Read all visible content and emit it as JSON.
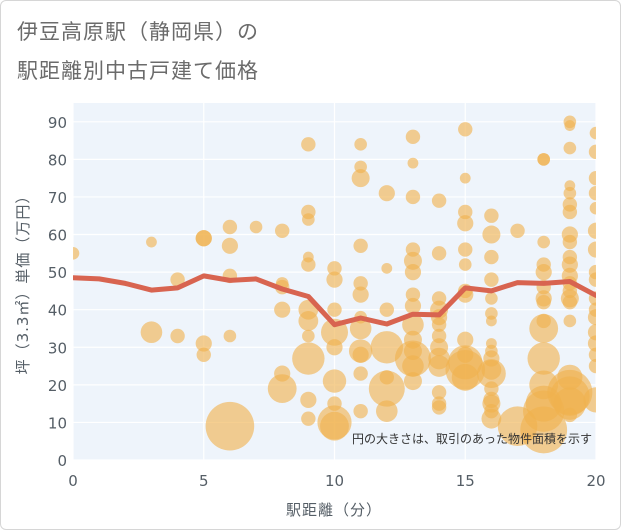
{
  "title": {
    "line1": "伊豆高原駅（静岡県）の",
    "line2": "駅距離別中古戸建て価格"
  },
  "chart_data": {
    "type": "scatter",
    "title": "伊豆高原駅（静岡県）の駅距離別中古戸建て価格",
    "xlabel": "駅距離（分）",
    "ylabel": "坪（3.3㎡）単価（万円）",
    "xlim": [
      0,
      20
    ],
    "ylim": [
      0,
      95
    ],
    "xticks": [
      0,
      5,
      10,
      15,
      20
    ],
    "yticks": [
      0,
      10,
      20,
      30,
      40,
      50,
      60,
      70,
      80,
      90
    ],
    "grid": true,
    "colors": {
      "bubble": "#f0b24e",
      "line": "#d86450",
      "plot_bg": "#eef4fb",
      "grid": "#ffffff"
    },
    "annotation": "円の大きさは、取引のあった物件面積を示す",
    "average_line": {
      "x": [
        0,
        1,
        2,
        3,
        4,
        5,
        6,
        7,
        8,
        9,
        10,
        11,
        12,
        13,
        14,
        15,
        16,
        17,
        18,
        19,
        20
      ],
      "y": [
        48.5,
        48.2,
        47.0,
        45.2,
        45.8,
        49.0,
        47.8,
        48.2,
        45.5,
        43.5,
        36.0,
        37.8,
        36.2,
        38.8,
        38.6,
        45.8,
        45.0,
        47.2,
        47.0,
        47.5,
        43.8
      ]
    },
    "points": [
      {
        "x": 0,
        "y": 55,
        "s": 0.7
      },
      {
        "x": 3,
        "y": 58,
        "s": 0.6
      },
      {
        "x": 3,
        "y": 34,
        "s": 1.2
      },
      {
        "x": 4,
        "y": 48,
        "s": 0.8
      },
      {
        "x": 4,
        "y": 33,
        "s": 0.8
      },
      {
        "x": 5,
        "y": 59,
        "s": 0.9
      },
      {
        "x": 5,
        "y": 59,
        "s": 0.9
      },
      {
        "x": 5,
        "y": 31,
        "s": 0.9
      },
      {
        "x": 5,
        "y": 28,
        "s": 0.8
      },
      {
        "x": 6,
        "y": 62,
        "s": 0.8
      },
      {
        "x": 6,
        "y": 57,
        "s": 0.9
      },
      {
        "x": 6,
        "y": 49,
        "s": 0.8
      },
      {
        "x": 6,
        "y": 33,
        "s": 0.7
      },
      {
        "x": 6,
        "y": 9,
        "s": 2.7
      },
      {
        "x": 7,
        "y": 62,
        "s": 0.7
      },
      {
        "x": 8,
        "y": 61,
        "s": 0.8
      },
      {
        "x": 8,
        "y": 47,
        "s": 0.7
      },
      {
        "x": 8,
        "y": 46,
        "s": 0.8
      },
      {
        "x": 8,
        "y": 40,
        "s": 0.9
      },
      {
        "x": 8,
        "y": 23,
        "s": 0.9
      },
      {
        "x": 8,
        "y": 19,
        "s": 1.6
      },
      {
        "x": 9,
        "y": 84,
        "s": 0.8
      },
      {
        "x": 9,
        "y": 66,
        "s": 0.8
      },
      {
        "x": 9,
        "y": 64,
        "s": 0.7
      },
      {
        "x": 9,
        "y": 54,
        "s": 0.6
      },
      {
        "x": 9,
        "y": 52,
        "s": 0.8
      },
      {
        "x": 9,
        "y": 40,
        "s": 1.1
      },
      {
        "x": 9,
        "y": 37,
        "s": 1.1
      },
      {
        "x": 9,
        "y": 33,
        "s": 0.7
      },
      {
        "x": 9,
        "y": 27,
        "s": 1.8
      },
      {
        "x": 9,
        "y": 16,
        "s": 0.9
      },
      {
        "x": 9,
        "y": 11,
        "s": 0.8
      },
      {
        "x": 10,
        "y": 51,
        "s": 0.8
      },
      {
        "x": 10,
        "y": 48,
        "s": 0.9
      },
      {
        "x": 10,
        "y": 40,
        "s": 0.8
      },
      {
        "x": 10,
        "y": 34,
        "s": 1.5
      },
      {
        "x": 10,
        "y": 30,
        "s": 0.9
      },
      {
        "x": 10,
        "y": 21,
        "s": 1.3
      },
      {
        "x": 10,
        "y": 15,
        "s": 0.8
      },
      {
        "x": 10,
        "y": 10,
        "s": 1.9
      },
      {
        "x": 10,
        "y": 9,
        "s": 1.6
      },
      {
        "x": 11,
        "y": 84,
        "s": 0.7
      },
      {
        "x": 11,
        "y": 78,
        "s": 0.7
      },
      {
        "x": 11,
        "y": 75,
        "s": 1.0
      },
      {
        "x": 11,
        "y": 57,
        "s": 0.8
      },
      {
        "x": 11,
        "y": 47,
        "s": 0.8
      },
      {
        "x": 11,
        "y": 44,
        "s": 0.9
      },
      {
        "x": 11,
        "y": 38,
        "s": 0.7
      },
      {
        "x": 11,
        "y": 35,
        "s": 1.2
      },
      {
        "x": 11,
        "y": 29,
        "s": 1.3
      },
      {
        "x": 11,
        "y": 28,
        "s": 0.9
      },
      {
        "x": 11,
        "y": 23,
        "s": 0.8
      },
      {
        "x": 11,
        "y": 13,
        "s": 0.8
      },
      {
        "x": 12,
        "y": 71,
        "s": 0.9
      },
      {
        "x": 12,
        "y": 51,
        "s": 0.6
      },
      {
        "x": 12,
        "y": 40,
        "s": 0.8
      },
      {
        "x": 12,
        "y": 30,
        "s": 1.8
      },
      {
        "x": 12,
        "y": 22,
        "s": 0.8
      },
      {
        "x": 12,
        "y": 19,
        "s": 2.0
      },
      {
        "x": 12,
        "y": 13,
        "s": 1.2
      },
      {
        "x": 13,
        "y": 86,
        "s": 0.8
      },
      {
        "x": 13,
        "y": 79,
        "s": 0.6
      },
      {
        "x": 13,
        "y": 70,
        "s": 0.8
      },
      {
        "x": 13,
        "y": 56,
        "s": 0.8
      },
      {
        "x": 13,
        "y": 53,
        "s": 1.0
      },
      {
        "x": 13,
        "y": 50,
        "s": 0.9
      },
      {
        "x": 13,
        "y": 44,
        "s": 0.8
      },
      {
        "x": 13,
        "y": 41,
        "s": 0.9
      },
      {
        "x": 13,
        "y": 36,
        "s": 1.2
      },
      {
        "x": 13,
        "y": 32,
        "s": 1.0
      },
      {
        "x": 13,
        "y": 29,
        "s": 1.0
      },
      {
        "x": 13,
        "y": 27,
        "s": 2.0
      },
      {
        "x": 13,
        "y": 25,
        "s": 1.2
      },
      {
        "x": 13,
        "y": 21,
        "s": 1.0
      },
      {
        "x": 14,
        "y": 69,
        "s": 0.8
      },
      {
        "x": 14,
        "y": 55,
        "s": 0.8
      },
      {
        "x": 14,
        "y": 43,
        "s": 0.8
      },
      {
        "x": 14,
        "y": 40,
        "s": 1.0
      },
      {
        "x": 14,
        "y": 38,
        "s": 0.9
      },
      {
        "x": 14,
        "y": 36,
        "s": 0.8
      },
      {
        "x": 14,
        "y": 33,
        "s": 0.8
      },
      {
        "x": 14,
        "y": 30,
        "s": 1.0
      },
      {
        "x": 14,
        "y": 27,
        "s": 1.2
      },
      {
        "x": 14,
        "y": 25,
        "s": 1.2
      },
      {
        "x": 14,
        "y": 18,
        "s": 0.8
      },
      {
        "x": 14,
        "y": 15,
        "s": 0.8
      },
      {
        "x": 14,
        "y": 14,
        "s": 0.8
      },
      {
        "x": 15,
        "y": 88,
        "s": 0.8
      },
      {
        "x": 15,
        "y": 75,
        "s": 0.6
      },
      {
        "x": 15,
        "y": 66,
        "s": 0.8
      },
      {
        "x": 15,
        "y": 63,
        "s": 0.9
      },
      {
        "x": 15,
        "y": 56,
        "s": 0.8
      },
      {
        "x": 15,
        "y": 52,
        "s": 0.7
      },
      {
        "x": 15,
        "y": 45,
        "s": 0.8
      },
      {
        "x": 15,
        "y": 44,
        "s": 0.9
      },
      {
        "x": 15,
        "y": 32,
        "s": 0.9
      },
      {
        "x": 15,
        "y": 28,
        "s": 0.9
      },
      {
        "x": 15,
        "y": 26,
        "s": 1.9
      },
      {
        "x": 15,
        "y": 24,
        "s": 2.2
      },
      {
        "x": 15,
        "y": 22,
        "s": 1.5
      },
      {
        "x": 16,
        "y": 65,
        "s": 0.8
      },
      {
        "x": 16,
        "y": 60,
        "s": 1.0
      },
      {
        "x": 16,
        "y": 54,
        "s": 0.8
      },
      {
        "x": 16,
        "y": 48,
        "s": 0.8
      },
      {
        "x": 16,
        "y": 43,
        "s": 0.7
      },
      {
        "x": 16,
        "y": 39,
        "s": 0.7
      },
      {
        "x": 16,
        "y": 37,
        "s": 0.6
      },
      {
        "x": 16,
        "y": 31,
        "s": 0.6
      },
      {
        "x": 16,
        "y": 29,
        "s": 0.7
      },
      {
        "x": 16,
        "y": 27,
        "s": 0.9
      },
      {
        "x": 16,
        "y": 24,
        "s": 1.1
      },
      {
        "x": 16,
        "y": 23,
        "s": 1.6
      },
      {
        "x": 16,
        "y": 19,
        "s": 0.8
      },
      {
        "x": 16,
        "y": 16,
        "s": 0.9
      },
      {
        "x": 16,
        "y": 15,
        "s": 1.0
      },
      {
        "x": 16,
        "y": 13,
        "s": 0.8
      },
      {
        "x": 16,
        "y": 11,
        "s": 1.1
      },
      {
        "x": 17,
        "y": 61,
        "s": 0.8
      },
      {
        "x": 17,
        "y": 9,
        "s": 2.2
      },
      {
        "x": 18,
        "y": 80,
        "s": 0.7
      },
      {
        "x": 18,
        "y": 80,
        "s": 0.7
      },
      {
        "x": 18,
        "y": 58,
        "s": 0.7
      },
      {
        "x": 18,
        "y": 52,
        "s": 0.8
      },
      {
        "x": 18,
        "y": 50,
        "s": 0.9
      },
      {
        "x": 18,
        "y": 46,
        "s": 0.8
      },
      {
        "x": 18,
        "y": 43,
        "s": 0.9
      },
      {
        "x": 18,
        "y": 42,
        "s": 0.8
      },
      {
        "x": 18,
        "y": 37,
        "s": 0.8
      },
      {
        "x": 18,
        "y": 35,
        "s": 1.6
      },
      {
        "x": 18,
        "y": 27,
        "s": 1.8
      },
      {
        "x": 18,
        "y": 20,
        "s": 1.6
      },
      {
        "x": 18,
        "y": 15,
        "s": 2.0
      },
      {
        "x": 18,
        "y": 13,
        "s": 2.3
      },
      {
        "x": 18,
        "y": 8,
        "s": 2.6
      },
      {
        "x": 19,
        "y": 90,
        "s": 0.7
      },
      {
        "x": 19,
        "y": 89,
        "s": 0.6
      },
      {
        "x": 19,
        "y": 83,
        "s": 0.7
      },
      {
        "x": 19,
        "y": 73,
        "s": 0.6
      },
      {
        "x": 19,
        "y": 71,
        "s": 0.7
      },
      {
        "x": 19,
        "y": 68,
        "s": 0.8
      },
      {
        "x": 19,
        "y": 66,
        "s": 0.8
      },
      {
        "x": 19,
        "y": 60,
        "s": 0.9
      },
      {
        "x": 19,
        "y": 58,
        "s": 0.8
      },
      {
        "x": 19,
        "y": 54,
        "s": 0.8
      },
      {
        "x": 19,
        "y": 52,
        "s": 0.9
      },
      {
        "x": 19,
        "y": 49,
        "s": 0.9
      },
      {
        "x": 19,
        "y": 47,
        "s": 0.8
      },
      {
        "x": 19,
        "y": 45,
        "s": 0.8
      },
      {
        "x": 19,
        "y": 43,
        "s": 1.0
      },
      {
        "x": 19,
        "y": 42,
        "s": 0.8
      },
      {
        "x": 19,
        "y": 37,
        "s": 0.7
      },
      {
        "x": 19,
        "y": 22,
        "s": 1.4
      },
      {
        "x": 19,
        "y": 18,
        "s": 2.5
      },
      {
        "x": 19,
        "y": 17,
        "s": 2.2
      },
      {
        "x": 19,
        "y": 15,
        "s": 1.8
      },
      {
        "x": 19,
        "y": 12,
        "s": 0.8
      },
      {
        "x": 20,
        "y": 87,
        "s": 0.7
      },
      {
        "x": 20,
        "y": 82,
        "s": 0.8
      },
      {
        "x": 20,
        "y": 75,
        "s": 0.8
      },
      {
        "x": 20,
        "y": 71,
        "s": 0.8
      },
      {
        "x": 20,
        "y": 67,
        "s": 0.7
      },
      {
        "x": 20,
        "y": 61,
        "s": 0.9
      },
      {
        "x": 20,
        "y": 56,
        "s": 0.9
      },
      {
        "x": 20,
        "y": 50,
        "s": 0.8
      },
      {
        "x": 20,
        "y": 48,
        "s": 0.8
      },
      {
        "x": 20,
        "y": 43,
        "s": 0.8
      },
      {
        "x": 20,
        "y": 40,
        "s": 0.8
      },
      {
        "x": 20,
        "y": 38,
        "s": 0.9
      },
      {
        "x": 20,
        "y": 34,
        "s": 0.9
      },
      {
        "x": 20,
        "y": 31,
        "s": 0.9
      },
      {
        "x": 20,
        "y": 28,
        "s": 0.8
      },
      {
        "x": 20,
        "y": 25,
        "s": 0.8
      },
      {
        "x": 20,
        "y": 16,
        "s": 1.4
      }
    ]
  }
}
